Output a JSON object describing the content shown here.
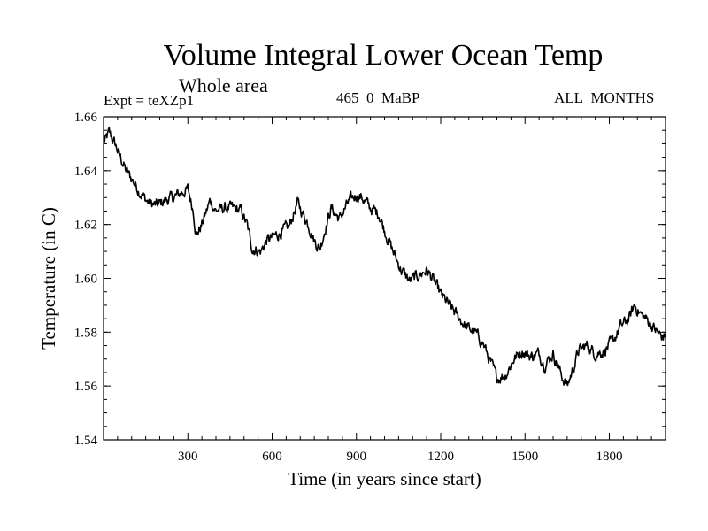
{
  "chart_data": {
    "type": "line",
    "title": "Volume Integral Lower Ocean Temp",
    "subtitle": "Whole area",
    "left_label": "Expt = teXZp1",
    "center_label": "465_0_MaBP",
    "right_label": "ALL_MONTHS",
    "xlabel": "Time (in years since start)",
    "ylabel": "Temperature (in C)",
    "xlim": [
      0,
      2000
    ],
    "ylim": [
      1.54,
      1.66
    ],
    "x_ticks": [
      300,
      600,
      900,
      1200,
      1500,
      1800
    ],
    "x_tick_labels": [
      "300",
      "600",
      "900",
      "1200",
      "1500",
      "1800"
    ],
    "y_ticks": [
      1.54,
      1.56,
      1.58,
      1.6,
      1.62,
      1.64,
      1.66
    ],
    "y_tick_labels": [
      "1.54",
      "1.56",
      "1.58",
      "1.60",
      "1.62",
      "1.64",
      "1.66"
    ],
    "series": [
      {
        "name": "Volume integral lower ocean temperature",
        "x": [
          0,
          20,
          40,
          60,
          80,
          100,
          130,
          160,
          190,
          220,
          250,
          280,
          300,
          320,
          330,
          350,
          380,
          400,
          430,
          460,
          490,
          510,
          530,
          560,
          580,
          600,
          630,
          660,
          690,
          710,
          730,
          750,
          770,
          790,
          810,
          840,
          870,
          900,
          920,
          950,
          980,
          1000,
          1030,
          1060,
          1090,
          1120,
          1150,
          1170,
          1200,
          1230,
          1260,
          1290,
          1320,
          1350,
          1380,
          1400,
          1430,
          1460,
          1490,
          1520,
          1550,
          1570,
          1600,
          1630,
          1650,
          1670,
          1690,
          1720,
          1750,
          1780,
          1810,
          1840,
          1870,
          1890,
          1910,
          1940,
          1970,
          1990,
          2000
        ],
        "y": [
          1.65,
          1.654,
          1.65,
          1.645,
          1.64,
          1.637,
          1.632,
          1.628,
          1.627,
          1.629,
          1.63,
          1.632,
          1.633,
          1.625,
          1.616,
          1.62,
          1.629,
          1.625,
          1.626,
          1.626,
          1.625,
          1.62,
          1.611,
          1.61,
          1.614,
          1.615,
          1.617,
          1.619,
          1.628,
          1.624,
          1.62,
          1.614,
          1.611,
          1.619,
          1.626,
          1.622,
          1.628,
          1.631,
          1.63,
          1.626,
          1.624,
          1.618,
          1.61,
          1.603,
          1.599,
          1.601,
          1.603,
          1.6,
          1.594,
          1.59,
          1.586,
          1.582,
          1.58,
          1.576,
          1.568,
          1.563,
          1.564,
          1.57,
          1.573,
          1.571,
          1.572,
          1.568,
          1.572,
          1.564,
          1.56,
          1.566,
          1.573,
          1.575,
          1.572,
          1.573,
          1.576,
          1.582,
          1.585,
          1.59,
          1.587,
          1.584,
          1.58,
          1.578,
          1.579
        ]
      }
    ]
  }
}
